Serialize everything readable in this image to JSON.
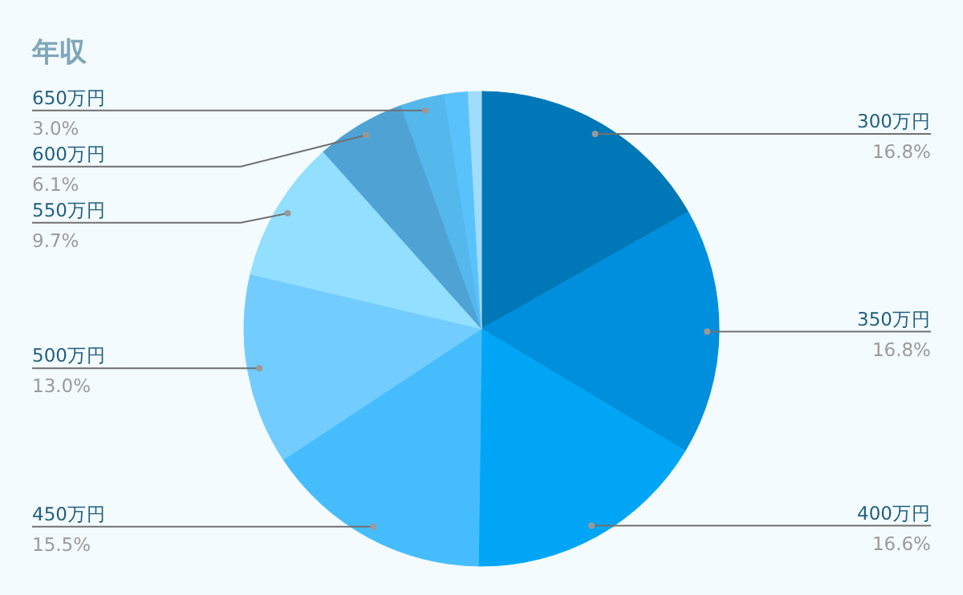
{
  "chart_data": {
    "type": "pie",
    "title": "年収",
    "categories": [
      "300万円",
      "350万円",
      "400万円",
      "450万円",
      "500万円",
      "550万円",
      "600万円",
      "650万円",
      null,
      null
    ],
    "values": [
      16.8,
      16.8,
      16.6,
      15.5,
      13.0,
      9.7,
      6.1,
      3.0,
      1.6,
      0.9
    ],
    "colors": [
      "#0077b6",
      "#008fdd",
      "#00a6f5",
      "#45bdfc",
      "#72ccff",
      "#92dfff",
      "#4fa3d4",
      "#55b8ec",
      "#5ac2fa",
      "#a0dcfc"
    ],
    "value_labels": [
      "16.8%",
      "16.8%",
      "16.6%",
      "15.5%",
      "13.0%",
      "9.7%",
      "6.1%",
      "3.0%",
      null,
      null
    ]
  }
}
